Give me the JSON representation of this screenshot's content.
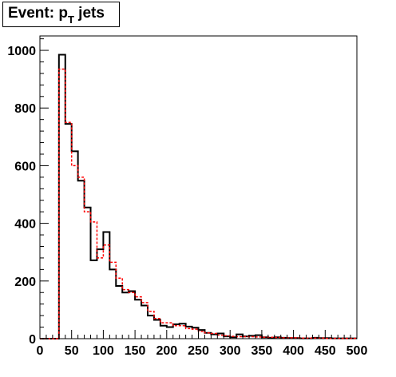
{
  "chart_data": {
    "type": "histogram",
    "title": {
      "prefix": "Event: p",
      "subscript": "T",
      "suffix": " jets"
    },
    "xlabel": "",
    "ylabel": "",
    "xlim": [
      0,
      500
    ],
    "ylim": [
      0,
      1050
    ],
    "bin_width": 10,
    "x_ticks": [
      0,
      50,
      100,
      150,
      200,
      250,
      300,
      350,
      400,
      450,
      500
    ],
    "y_ticks": [
      0,
      200,
      400,
      600,
      800,
      1000
    ],
    "grid": false,
    "legend": "none",
    "series": [
      {
        "style": "solid",
        "color": "#000000",
        "values": [
          0,
          0,
          0,
          985,
          745,
          650,
          548,
          455,
          272,
          310,
          370,
          240,
          183,
          160,
          165,
          135,
          115,
          80,
          65,
          45,
          40,
          50,
          52,
          42,
          38,
          30,
          20,
          15,
          18,
          8,
          5,
          15,
          8,
          10,
          12,
          5,
          3,
          5,
          3,
          2,
          2,
          1,
          1,
          3,
          2,
          2,
          1,
          1,
          1,
          1
        ]
      },
      {
        "style": "dashed",
        "color": "#ff0000",
        "values": [
          0,
          0,
          0,
          935,
          750,
          600,
          560,
          440,
          405,
          280,
          325,
          265,
          210,
          170,
          160,
          145,
          125,
          95,
          70,
          55,
          55,
          45,
          45,
          35,
          33,
          25,
          20,
          18,
          12,
          10,
          8,
          7,
          7,
          7,
          6,
          5,
          5,
          4,
          3,
          3,
          3,
          2,
          2,
          2,
          2,
          1,
          1,
          1,
          1,
          1
        ]
      }
    ]
  }
}
